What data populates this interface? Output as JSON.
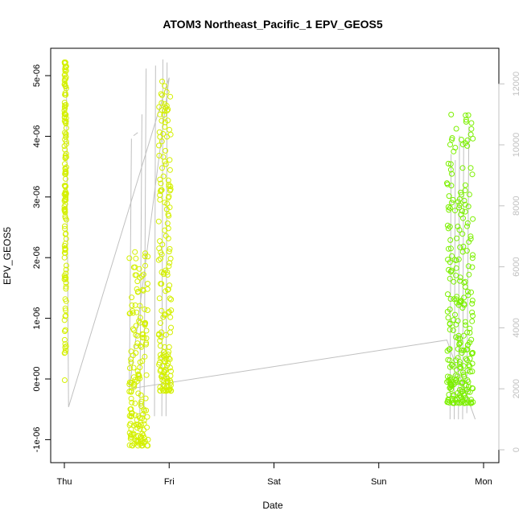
{
  "chart_data": {
    "type": "scatter",
    "title": "ATOM3 Northeast_Pacific_1 EPV_GEOS5",
    "xlabel": "Date",
    "ylabel": "EPV_GEOS5",
    "x_tick_labels": [
      "Thu",
      "Fri",
      "Sat",
      "Sun",
      "Mon"
    ],
    "x_range_days": [
      -0.1,
      4.0
    ],
    "ylim": [
      -1.3e-06,
      5.5e-06
    ],
    "y_ticks": [
      -1e-06,
      0,
      1e-06,
      2e-06,
      3e-06,
      4e-06,
      5e-06
    ],
    "y_tick_labels": [
      "-1e-06",
      "0e+00",
      "1e-06",
      "2e-06",
      "3e-06",
      "4e-06",
      "5e-06"
    ],
    "y2_range": [
      -300,
      12800
    ],
    "y2_ticks": [
      0,
      2000,
      4000,
      6000,
      8000,
      10000,
      12000
    ],
    "y2_tick_labels": [
      "0",
      "2000",
      "4000",
      "6000",
      "8000",
      "10000",
      "12000"
    ],
    "grid": false,
    "colors": {
      "early_points": "#d4f000",
      "late_points": "#7cf000",
      "altitude_line": "#c0c0c0"
    },
    "series": [
      {
        "axis": "left",
        "role": "points",
        "segments": [
          {
            "x": [
              0.0,
              0.02
            ],
            "y": [
              -1e-07,
              5.25e-06
            ]
          },
          {
            "x": [
              0.62,
              0.8
            ],
            "y": [
              -1.1e-06,
              2.1e-06
            ]
          },
          {
            "x": [
              0.9,
              1.02
            ],
            "y": [
              -2e-07,
              5e-06
            ]
          },
          {
            "x": [
              3.65,
              3.9
            ],
            "y": [
              -4e-07,
              4.45e-06
            ]
          }
        ]
      },
      {
        "axis": "right",
        "role": "line",
        "x": [
          0.02,
          0.04,
          0.98,
          1.0,
          0.62,
          3.65,
          3.92
        ],
        "y": [
          12000,
          1400,
          12000,
          12200,
          2000,
          3600,
          1000
        ]
      }
    ]
  }
}
